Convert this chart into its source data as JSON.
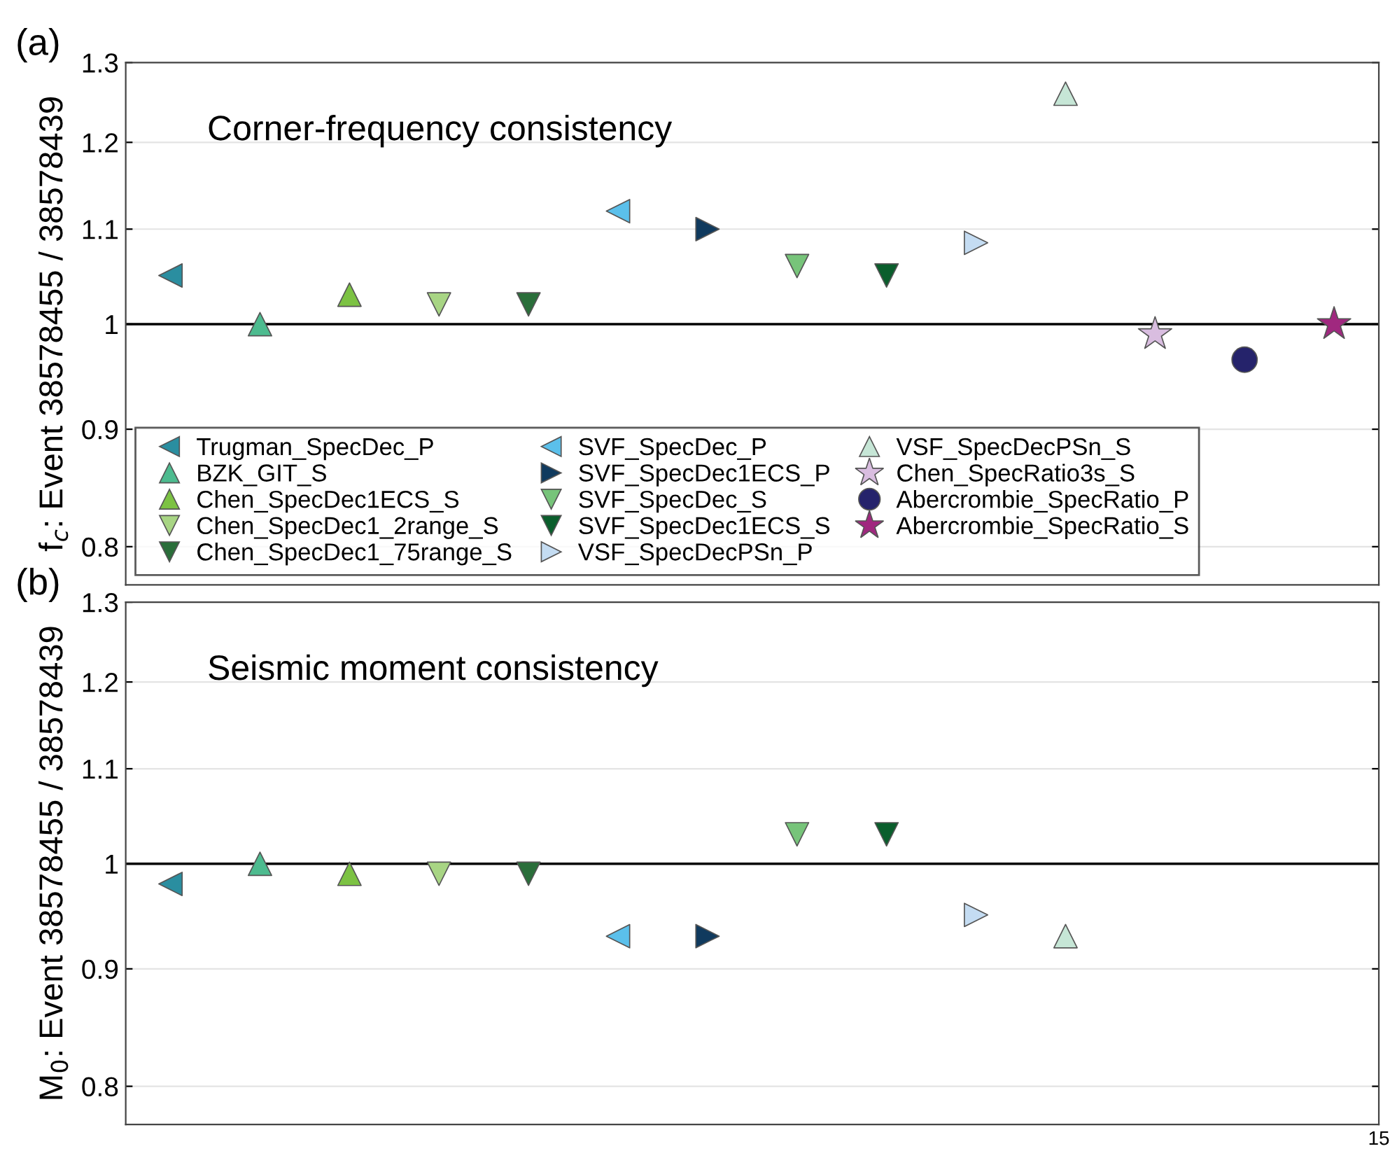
{
  "chart_data": [
    {
      "type": "scatter",
      "title": "Corner-frequency consistency",
      "ylabel": "f$_{c}$: Event 38578455 / 38578439",
      "annotations": [
        "(a)"
      ],
      "categories": [
        null,
        null,
        null,
        null,
        null,
        null,
        null,
        null,
        null,
        null,
        null,
        null,
        null,
        null
      ],
      "ylim": [
        0.77,
        1.3
      ],
      "yticks": [
        0.8,
        0.9,
        1,
        1.1,
        1.2,
        1.3
      ],
      "log": "y",
      "grid": "y",
      "legend": "bottom left",
      "ref_lines": [
        {
          "axis": "y",
          "value": 1,
          "label": null,
          "color": "#000000",
          "line_style": "solid"
        }
      ],
      "series": [
        {
          "name": "Trugman_SpecDec_P",
          "color": "#2a8ea0",
          "marker": "triangle-left",
          "values": [
            1.05,
            null,
            null,
            null,
            null,
            null,
            null,
            null,
            null,
            null,
            null,
            null,
            null,
            null
          ]
        },
        {
          "name": "BZK_GIT_S",
          "color": "#4dbb8f",
          "marker": "triangle",
          "values": [
            null,
            1.0,
            null,
            null,
            null,
            null,
            null,
            null,
            null,
            null,
            null,
            null,
            null,
            null
          ]
        },
        {
          "name": "Chen_SpecDec1ECS_S",
          "color": "#7cc243",
          "marker": "triangle",
          "values": [
            null,
            null,
            1.03,
            null,
            null,
            null,
            null,
            null,
            null,
            null,
            null,
            null,
            null,
            null
          ]
        },
        {
          "name": "Chen_SpecDec1_2range_S",
          "color": "#a8d584",
          "marker": "triangle-down",
          "values": [
            null,
            null,
            null,
            1.02,
            null,
            null,
            null,
            null,
            null,
            null,
            null,
            null,
            null,
            null
          ]
        },
        {
          "name": "Chen_SpecDec1_75range_S",
          "color": "#2a6e3a",
          "marker": "triangle-down",
          "values": [
            null,
            null,
            null,
            null,
            1.02,
            null,
            null,
            null,
            null,
            null,
            null,
            null,
            null,
            null
          ]
        },
        {
          "name": "SVF_SpecDec_P",
          "color": "#5bc0eb",
          "marker": "triangle-left",
          "values": [
            null,
            null,
            null,
            null,
            null,
            1.12,
            null,
            null,
            null,
            null,
            null,
            null,
            null,
            null
          ]
        },
        {
          "name": "SVF_SpecDec1ECS_P",
          "color": "#103a5e",
          "marker": "triangle-right",
          "values": [
            null,
            null,
            null,
            null,
            null,
            null,
            1.1,
            null,
            null,
            null,
            null,
            null,
            null,
            null
          ]
        },
        {
          "name": "SVF_SpecDec_S",
          "color": "#77c47a",
          "marker": "triangle-down",
          "values": [
            null,
            null,
            null,
            null,
            null,
            null,
            null,
            1.06,
            null,
            null,
            null,
            null,
            null,
            null
          ]
        },
        {
          "name": "SVF_SpecDec1ECS_S",
          "color": "#0a5e2c",
          "marker": "triangle-down",
          "values": [
            null,
            null,
            null,
            null,
            null,
            null,
            null,
            null,
            1.05,
            null,
            null,
            null,
            null,
            null
          ]
        },
        {
          "name": "VSF_SpecDecPSn_P",
          "color": "#c4dcf2",
          "marker": "triangle-right",
          "values": [
            null,
            null,
            null,
            null,
            null,
            null,
            null,
            null,
            null,
            1.085,
            null,
            null,
            null,
            null
          ]
        },
        {
          "name": "VSF_SpecDecPSn_S",
          "color": "#c6e6d6",
          "marker": "triangle",
          "values": [
            null,
            null,
            null,
            null,
            null,
            null,
            null,
            null,
            null,
            null,
            1.26,
            null,
            null,
            null
          ]
        },
        {
          "name": "Chen_SpecRatio3s_S",
          "color": "#d9bde0",
          "marker": "star",
          "values": [
            null,
            null,
            null,
            null,
            null,
            null,
            null,
            null,
            null,
            null,
            null,
            0.99,
            null,
            null
          ]
        },
        {
          "name": "Abercrombie_SpecRatio_P",
          "color": "#25236b",
          "marker": "circle",
          "values": [
            null,
            null,
            null,
            null,
            null,
            null,
            null,
            null,
            null,
            null,
            null,
            null,
            0.965,
            null
          ]
        },
        {
          "name": "Abercrombie_SpecRatio_S",
          "color": "#a0287f",
          "marker": "star",
          "values": [
            null,
            null,
            null,
            null,
            null,
            null,
            null,
            null,
            null,
            null,
            null,
            null,
            null,
            1.0
          ]
        }
      ]
    },
    {
      "type": "scatter",
      "title": "Seismic moment consistency",
      "ylabel": "M$_{0}$: Event 38578455 / 38578439",
      "annotations": [
        "(b)",
        "15"
      ],
      "categories": [
        null,
        null,
        null,
        null,
        null,
        null,
        null,
        null,
        null,
        null,
        null,
        null,
        null,
        null
      ],
      "ylim": [
        0.77,
        1.3
      ],
      "yticks": [
        0.8,
        0.9,
        1,
        1.1,
        1.2,
        1.3
      ],
      "log": "y",
      "grid": "y",
      "ref_lines": [
        {
          "axis": "y",
          "value": 1,
          "label": null,
          "color": "#000000",
          "line_style": "solid"
        }
      ],
      "series": [
        {
          "color": "#2a8ea0",
          "marker": "triangle-left",
          "values": [
            0.98,
            null,
            null,
            null,
            null,
            null,
            null,
            null,
            null,
            null,
            null,
            null,
            null,
            null
          ]
        },
        {
          "color": "#4dbb8f",
          "marker": "triangle",
          "values": [
            null,
            1.0,
            null,
            null,
            null,
            null,
            null,
            null,
            null,
            null,
            null,
            null,
            null,
            null
          ]
        },
        {
          "color": "#7cc243",
          "marker": "triangle",
          "values": [
            null,
            null,
            0.99,
            null,
            null,
            null,
            null,
            null,
            null,
            null,
            null,
            null,
            null,
            null
          ]
        },
        {
          "color": "#a8d584",
          "marker": "triangle-down",
          "values": [
            null,
            null,
            null,
            0.99,
            null,
            null,
            null,
            null,
            null,
            null,
            null,
            null,
            null,
            null
          ]
        },
        {
          "color": "#2a6e3a",
          "marker": "triangle-down",
          "values": [
            null,
            null,
            null,
            null,
            0.99,
            null,
            null,
            null,
            null,
            null,
            null,
            null,
            null,
            null
          ]
        },
        {
          "color": "#5bc0eb",
          "marker": "triangle-left",
          "values": [
            null,
            null,
            null,
            null,
            null,
            0.93,
            null,
            null,
            null,
            null,
            null,
            null,
            null,
            null
          ]
        },
        {
          "color": "#103a5e",
          "marker": "triangle-right",
          "values": [
            null,
            null,
            null,
            null,
            null,
            null,
            0.93,
            null,
            null,
            null,
            null,
            null,
            null,
            null
          ]
        },
        {
          "color": "#77c47a",
          "marker": "triangle-down",
          "values": [
            null,
            null,
            null,
            null,
            null,
            null,
            null,
            1.03,
            null,
            null,
            null,
            null,
            null,
            null
          ]
        },
        {
          "color": "#0a5e2c",
          "marker": "triangle-down",
          "values": [
            null,
            null,
            null,
            null,
            null,
            null,
            null,
            null,
            1.03,
            null,
            null,
            null,
            null,
            null
          ]
        },
        {
          "color": "#c4dcf2",
          "marker": "triangle-right",
          "values": [
            null,
            null,
            null,
            null,
            null,
            null,
            null,
            null,
            null,
            0.95,
            null,
            null,
            null,
            null
          ]
        },
        {
          "color": "#c6e6d6",
          "marker": "triangle",
          "values": [
            null,
            null,
            null,
            null,
            null,
            null,
            null,
            null,
            null,
            null,
            0.93,
            null,
            null,
            null
          ]
        }
      ]
    }
  ]
}
